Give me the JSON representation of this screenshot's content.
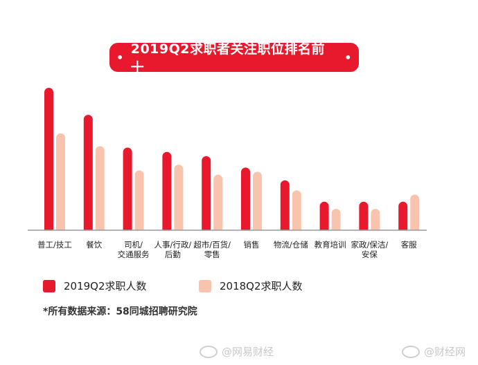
{
  "title": "2019Q2求职者关注职位排名前十",
  "colors": {
    "title_bg": "#e8192c",
    "series_2019": "#e8192c",
    "series_2018": "#f8c4ae",
    "axis": "#999999"
  },
  "chart_data": {
    "type": "bar",
    "title": "2019Q2求职者关注职位排名前十",
    "categories": [
      [
        "普工/技工"
      ],
      [
        "餐饮"
      ],
      [
        "司机/",
        "交通服务"
      ],
      [
        "人事/行政/",
        "后勤"
      ],
      [
        "超市/百货/",
        "零售"
      ],
      [
        "销售"
      ],
      [
        "物流/仓储"
      ],
      [
        "教育培训"
      ],
      [
        "家政/保洁/",
        "安保"
      ],
      [
        "客服"
      ]
    ],
    "series": [
      {
        "name": "2019Q2求职人数",
        "values": [
          100,
          81,
          58,
          55,
          52,
          44,
          35,
          20,
          20,
          20
        ]
      },
      {
        "name": "2018Q2求职人数",
        "values": [
          68,
          59,
          42,
          46,
          39,
          41,
          28,
          15,
          15,
          25
        ]
      }
    ],
    "ylim": [
      0,
      100
    ],
    "legend_position": "bottom"
  },
  "legend": [
    {
      "label": "2019Q2求职人数"
    },
    {
      "label": "2018Q2求职人数"
    }
  ],
  "source": "*所有数据来源：58同城招聘研究院",
  "watermarks": [
    "@网易财经",
    "@财经网"
  ]
}
